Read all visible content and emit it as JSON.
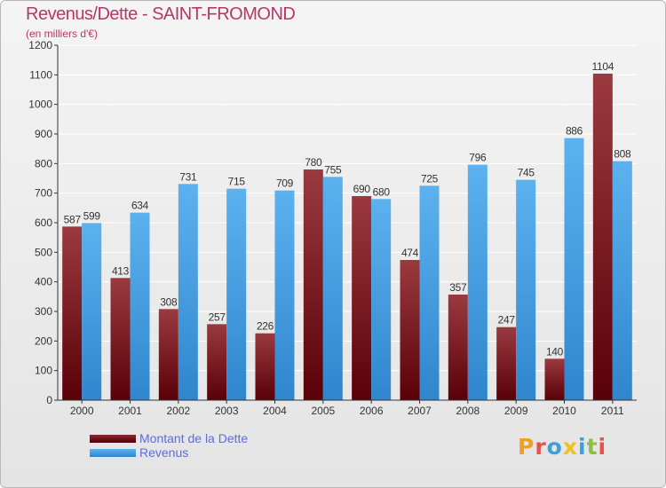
{
  "header": {
    "title": "Revenus/Dette - SAINT-FROMOND",
    "subtitle": "(en milliers d'€)"
  },
  "legend": {
    "items": [
      {
        "label": "Montant de la Dette",
        "color": "#6e0f16"
      },
      {
        "label": "Revenus",
        "color": "#4aa2e3"
      }
    ]
  },
  "logo": {
    "letters": [
      "P",
      "r",
      "o",
      "x",
      "i",
      "t",
      "i"
    ],
    "colors": [
      "#f0a020",
      "#e8504a",
      "#3aa0d8",
      "#f0c020",
      "#3aa0d8",
      "#8cc040",
      "#e8504a"
    ]
  },
  "chart_data": {
    "type": "bar",
    "categories": [
      "2000",
      "2001",
      "2002",
      "2003",
      "2004",
      "2005",
      "2006",
      "2007",
      "2008",
      "2009",
      "2010",
      "2011"
    ],
    "series": [
      {
        "name": "Montant de la Dette",
        "values": [
          587,
          413,
          308,
          257,
          226,
          780,
          690,
          474,
          357,
          247,
          140,
          1104
        ],
        "color": "#6e0f16"
      },
      {
        "name": "Revenus",
        "values": [
          599,
          634,
          731,
          715,
          709,
          755,
          680,
          725,
          796,
          745,
          886,
          808
        ],
        "color": "#4aa2e3"
      }
    ],
    "ylim": [
      0,
      1200
    ],
    "yticks": [
      0,
      100,
      200,
      300,
      400,
      500,
      600,
      700,
      800,
      900,
      1000,
      1100,
      1200
    ],
    "grid": true
  }
}
